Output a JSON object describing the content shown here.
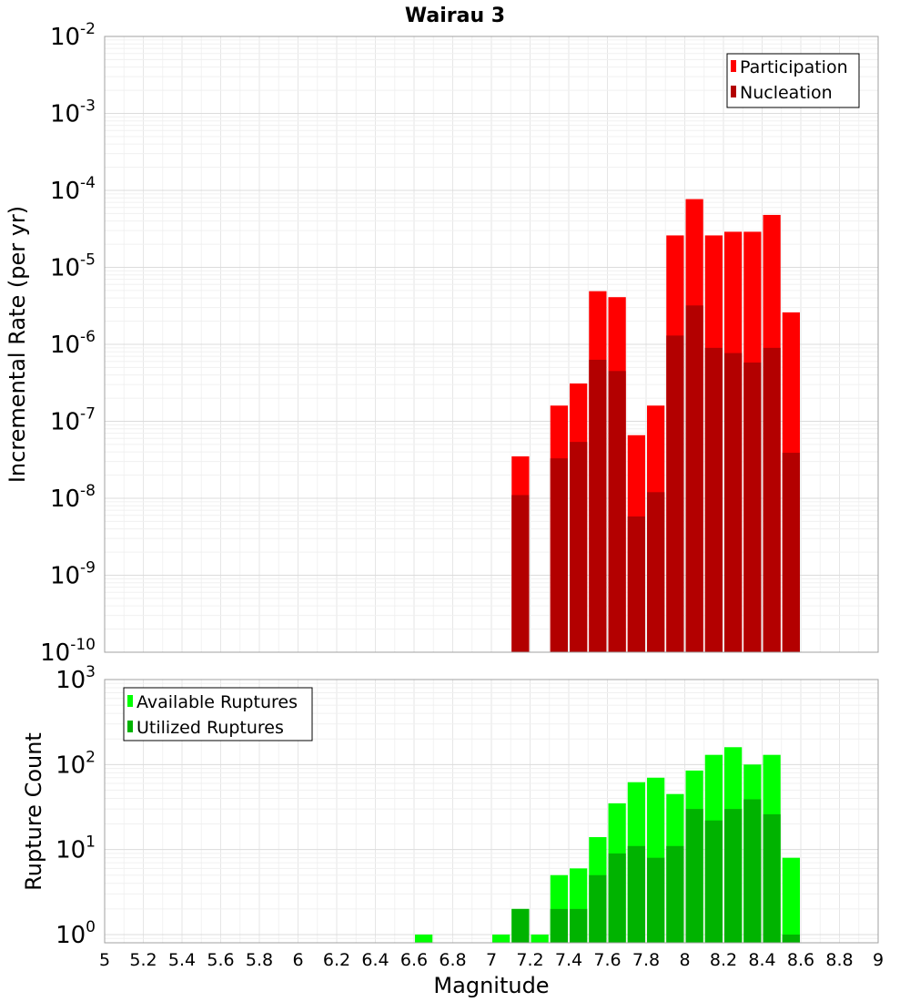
{
  "chart_data": [
    {
      "type": "bar",
      "title": "Wairau 3",
      "xlabel": "Magnitude",
      "ylabel": "Incremental Rate (per yr)",
      "yscale": "log",
      "ylim": [
        1e-10,
        0.01
      ],
      "xlim": [
        5,
        9
      ],
      "grid": true,
      "legend_position": "top-right",
      "ytick_labels": [
        {
          "base": "10",
          "exp": "-10"
        },
        {
          "base": "10",
          "exp": "-9"
        },
        {
          "base": "10",
          "exp": "-8"
        },
        {
          "base": "10",
          "exp": "-7"
        },
        {
          "base": "10",
          "exp": "-6"
        },
        {
          "base": "10",
          "exp": "-5"
        },
        {
          "base": "10",
          "exp": "-4"
        },
        {
          "base": "10",
          "exp": "-3"
        },
        {
          "base": "10",
          "exp": "-2"
        }
      ],
      "series": [
        {
          "name": "Participation",
          "color": "#ff0000",
          "x": [
            7.15,
            7.25,
            7.35,
            7.45,
            7.55,
            7.65,
            7.75,
            7.85,
            7.95,
            8.05,
            8.15,
            8.25,
            8.35,
            8.45,
            8.55
          ],
          "values": [
            3.5e-08,
            0,
            1.6e-07,
            3.1e-07,
            4.9e-06,
            4.1e-06,
            6.6e-08,
            1.6e-07,
            2.6e-05,
            7.7e-05,
            2.6e-05,
            2.9e-05,
            2.9e-05,
            4.8e-05,
            2.6e-06
          ]
        },
        {
          "name": "Nucleation",
          "color": "#b30000",
          "x": [
            7.15,
            7.25,
            7.35,
            7.45,
            7.55,
            7.65,
            7.75,
            7.85,
            7.95,
            8.05,
            8.15,
            8.25,
            8.35,
            8.45,
            8.55
          ],
          "values": [
            1.1e-08,
            0,
            3.3e-08,
            5.4e-08,
            6.3e-07,
            4.5e-07,
            5.8e-09,
            1.2e-08,
            1.3e-06,
            3.2e-06,
            9e-07,
            7.7e-07,
            5.8e-07,
            9e-07,
            3.9e-08
          ]
        }
      ]
    },
    {
      "type": "bar",
      "xlabel": "Magnitude",
      "ylabel": "Rupture Count",
      "yscale": "log",
      "ylim": [
        0.8,
        1000
      ],
      "xlim": [
        5,
        9
      ],
      "grid": true,
      "legend_position": "top-left",
      "xticks": [
        "5",
        "5.2",
        "5.4",
        "5.6",
        "5.8",
        "6",
        "6.2",
        "6.4",
        "6.6",
        "6.8",
        "7",
        "7.2",
        "7.4",
        "7.6",
        "7.8",
        "8",
        "8.2",
        "8.4",
        "8.6",
        "8.8",
        "9"
      ],
      "ytick_labels": [
        {
          "base": "10",
          "exp": "0"
        },
        {
          "base": "10",
          "exp": "1"
        },
        {
          "base": "10",
          "exp": "2"
        },
        {
          "base": "10",
          "exp": "3"
        }
      ],
      "series": [
        {
          "name": "Available Ruptures",
          "color": "#00ff00",
          "x": [
            6.65,
            7.05,
            7.15,
            7.25,
            7.35,
            7.45,
            7.55,
            7.65,
            7.75,
            7.85,
            7.95,
            8.05,
            8.15,
            8.25,
            8.35,
            8.45,
            8.55
          ],
          "values": [
            1,
            1,
            2,
            1,
            5,
            6,
            14,
            35,
            62,
            70,
            45,
            85,
            130,
            160,
            100,
            130,
            8
          ]
        },
        {
          "name": "Utilized Ruptures",
          "color": "#00b300",
          "x": [
            6.65,
            7.05,
            7.15,
            7.25,
            7.35,
            7.45,
            7.55,
            7.65,
            7.75,
            7.85,
            7.95,
            8.05,
            8.15,
            8.25,
            8.35,
            8.45,
            8.55
          ],
          "values": [
            0,
            0,
            2,
            0,
            2,
            2,
            5,
            9,
            11,
            8,
            11,
            30,
            22,
            30,
            39,
            26,
            1
          ]
        }
      ]
    }
  ]
}
